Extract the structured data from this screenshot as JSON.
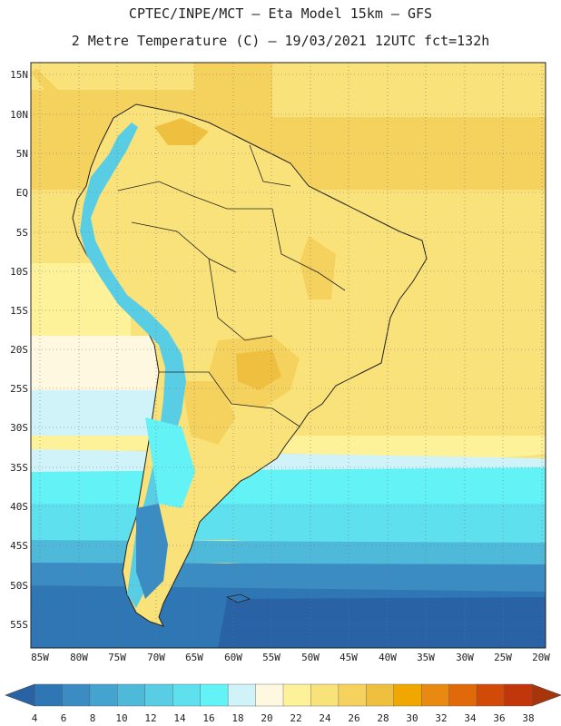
{
  "header": {
    "line1": "CPTEC/INPE/MCT –  Eta Model 15km – GFS",
    "line2": "2 Metre Temperature (C) – 19/03/2021 12UTC fct=132h"
  },
  "map": {
    "lat_labels": [
      "15N",
      "10N",
      "5N",
      "EQ",
      "5S",
      "10S",
      "15S",
      "20S",
      "25S",
      "30S",
      "35S",
      "40S",
      "45S",
      "50S",
      "55S"
    ],
    "lon_labels": [
      "85W",
      "80W",
      "75W",
      "70W",
      "65W",
      "60W",
      "55W",
      "50W",
      "45W",
      "40W",
      "35W",
      "30W",
      "25W",
      "20W"
    ]
  },
  "colorbar": {
    "labels": [
      "4",
      "6",
      "8",
      "10",
      "12",
      "14",
      "16",
      "18",
      "20",
      "22",
      "24",
      "26",
      "28",
      "30",
      "32",
      "34",
      "36",
      "38"
    ],
    "colors": [
      "#2a62a6",
      "#2f77b4",
      "#3a8cc2",
      "#45a4cf",
      "#4fb9da",
      "#58cde4",
      "#5fe0ee",
      "#63f3f7",
      "#cff3f8",
      "#fff8e1",
      "#fdf19a",
      "#fae27a",
      "#f5d25e",
      "#efc040",
      "#f0a800",
      "#e88a12",
      "#e06a0a",
      "#d14a08",
      "#c1360a",
      "#a8340c"
    ],
    "under_color": "#2a62a6",
    "over_color": "#a8340c"
  }
}
